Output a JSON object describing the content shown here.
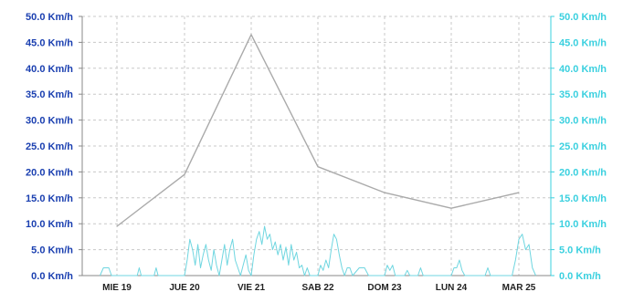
{
  "chart_data": {
    "type": "line",
    "categories": [
      "MIE 19",
      "JUE 20",
      "VIE 21",
      "SAB 22",
      "DOM 23",
      "LUN 24",
      "MAR 25"
    ],
    "ylim": [
      0,
      50
    ],
    "yticks": [
      "0.0 Km/h",
      "5.0 Km/h",
      "10.0 Km/h",
      "15.0 Km/h",
      "20.0 Km/h",
      "25.0 Km/h",
      "30.0 Km/h",
      "35.0 Km/h",
      "40.0 Km/h",
      "45.0 Km/h",
      "50.0 Km/h"
    ],
    "y2ticks": [
      "0.0 Km/h",
      "5.0 Km/h",
      "10.0 Km/h",
      "15.0 Km/h",
      "20.0 Km/h",
      "25.0 Km/h",
      "30.0 Km/h",
      "35.0 Km/h",
      "40.0 Km/h",
      "45.0 Km/h",
      "50.0 Km/h"
    ],
    "grid": true,
    "colors": {
      "left_axis_text": "#1a3fb0",
      "right_axis_text": "#3ad0df",
      "daily_line": "#aaaaaa",
      "hourly_line": "#6fd6e0",
      "grid": "#c8c8c8"
    },
    "series": [
      {
        "axis": "left",
        "points": [
          {
            "x": 0.0,
            "y": 9.5
          },
          {
            "x": 1.0,
            "y": 19.5
          },
          {
            "x": 2.0,
            "y": 46.5
          },
          {
            "x": 3.0,
            "y": 21.0
          },
          {
            "x": 4.0,
            "y": 16.0
          },
          {
            "x": 5.0,
            "y": 13.0
          },
          {
            "x": 6.0,
            "y": 16.0
          }
        ]
      },
      {
        "axis": "right",
        "points": [
          {
            "x": -0.25,
            "y": 0
          },
          {
            "x": -0.2,
            "y": 1.5
          },
          {
            "x": -0.12,
            "y": 1.5
          },
          {
            "x": -0.08,
            "y": 0
          },
          {
            "x": 0.3,
            "y": 0
          },
          {
            "x": 0.33,
            "y": 1.5
          },
          {
            "x": 0.36,
            "y": 0
          },
          {
            "x": 0.55,
            "y": 0
          },
          {
            "x": 0.58,
            "y": 1.5
          },
          {
            "x": 0.61,
            "y": 0
          },
          {
            "x": 1.0,
            "y": 0
          },
          {
            "x": 1.04,
            "y": 3
          },
          {
            "x": 1.08,
            "y": 7
          },
          {
            "x": 1.12,
            "y": 5
          },
          {
            "x": 1.16,
            "y": 2
          },
          {
            "x": 1.2,
            "y": 6
          },
          {
            "x": 1.24,
            "y": 1.5
          },
          {
            "x": 1.28,
            "y": 4
          },
          {
            "x": 1.32,
            "y": 6
          },
          {
            "x": 1.36,
            "y": 3
          },
          {
            "x": 1.4,
            "y": 1
          },
          {
            "x": 1.44,
            "y": 5
          },
          {
            "x": 1.48,
            "y": 2
          },
          {
            "x": 1.52,
            "y": 0
          },
          {
            "x": 1.56,
            "y": 3
          },
          {
            "x": 1.6,
            "y": 6
          },
          {
            "x": 1.64,
            "y": 2
          },
          {
            "x": 1.68,
            "y": 5
          },
          {
            "x": 1.72,
            "y": 7
          },
          {
            "x": 1.76,
            "y": 3
          },
          {
            "x": 1.8,
            "y": 1.5
          },
          {
            "x": 1.84,
            "y": 0
          },
          {
            "x": 1.88,
            "y": 2
          },
          {
            "x": 1.92,
            "y": 4
          },
          {
            "x": 1.96,
            "y": 1
          },
          {
            "x": 2.0,
            "y": 0
          },
          {
            "x": 2.04,
            "y": 4
          },
          {
            "x": 2.08,
            "y": 7
          },
          {
            "x": 2.12,
            "y": 8.5
          },
          {
            "x": 2.16,
            "y": 6
          },
          {
            "x": 2.2,
            "y": 9.5
          },
          {
            "x": 2.24,
            "y": 7
          },
          {
            "x": 2.28,
            "y": 8
          },
          {
            "x": 2.32,
            "y": 5
          },
          {
            "x": 2.36,
            "y": 6.5
          },
          {
            "x": 2.4,
            "y": 4
          },
          {
            "x": 2.44,
            "y": 6
          },
          {
            "x": 2.48,
            "y": 3
          },
          {
            "x": 2.52,
            "y": 5.5
          },
          {
            "x": 2.56,
            "y": 2
          },
          {
            "x": 2.6,
            "y": 6
          },
          {
            "x": 2.64,
            "y": 3
          },
          {
            "x": 2.68,
            "y": 4.5
          },
          {
            "x": 2.72,
            "y": 1.5
          },
          {
            "x": 2.76,
            "y": 2
          },
          {
            "x": 2.8,
            "y": 0
          },
          {
            "x": 2.84,
            "y": 1.5
          },
          {
            "x": 2.88,
            "y": 0
          },
          {
            "x": 3.0,
            "y": 0
          },
          {
            "x": 3.04,
            "y": 2
          },
          {
            "x": 3.08,
            "y": 1
          },
          {
            "x": 3.12,
            "y": 3
          },
          {
            "x": 3.16,
            "y": 1.5
          },
          {
            "x": 3.2,
            "y": 5
          },
          {
            "x": 3.24,
            "y": 8
          },
          {
            "x": 3.28,
            "y": 7
          },
          {
            "x": 3.32,
            "y": 4
          },
          {
            "x": 3.36,
            "y": 1.5
          },
          {
            "x": 3.4,
            "y": 0
          },
          {
            "x": 3.44,
            "y": 1.5
          },
          {
            "x": 3.48,
            "y": 1.5
          },
          {
            "x": 3.52,
            "y": 0
          },
          {
            "x": 3.62,
            "y": 1.5
          },
          {
            "x": 3.7,
            "y": 1.5
          },
          {
            "x": 3.76,
            "y": 0
          },
          {
            "x": 4.0,
            "y": 0
          },
          {
            "x": 4.04,
            "y": 2
          },
          {
            "x": 4.08,
            "y": 1
          },
          {
            "x": 4.12,
            "y": 2
          },
          {
            "x": 4.16,
            "y": 0
          },
          {
            "x": 4.3,
            "y": 0
          },
          {
            "x": 4.34,
            "y": 1
          },
          {
            "x": 4.38,
            "y": 0
          },
          {
            "x": 4.5,
            "y": 0
          },
          {
            "x": 4.54,
            "y": 1.5
          },
          {
            "x": 4.58,
            "y": 0
          },
          {
            "x": 5.0,
            "y": 0
          },
          {
            "x": 5.04,
            "y": 1.5
          },
          {
            "x": 5.08,
            "y": 1.5
          },
          {
            "x": 5.12,
            "y": 3
          },
          {
            "x": 5.16,
            "y": 1
          },
          {
            "x": 5.2,
            "y": 0
          },
          {
            "x": 5.5,
            "y": 0
          },
          {
            "x": 5.54,
            "y": 1.5
          },
          {
            "x": 5.58,
            "y": 0
          },
          {
            "x": 5.9,
            "y": 0
          },
          {
            "x": 5.95,
            "y": 3
          },
          {
            "x": 6.0,
            "y": 7
          },
          {
            "x": 6.05,
            "y": 8
          },
          {
            "x": 6.1,
            "y": 5
          },
          {
            "x": 6.15,
            "y": 6
          },
          {
            "x": 6.2,
            "y": 1.5
          },
          {
            "x": 6.25,
            "y": 0
          }
        ]
      }
    ]
  }
}
